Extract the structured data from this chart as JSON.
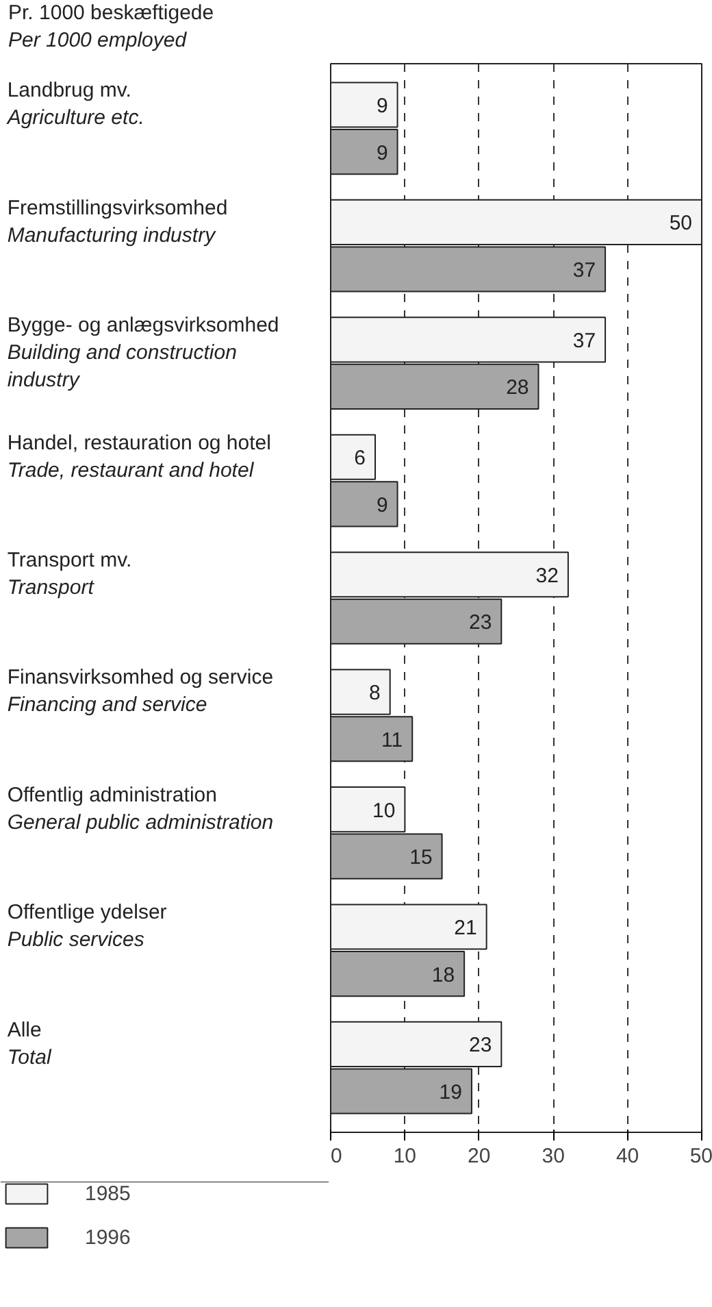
{
  "chart_data": {
    "type": "bar",
    "orientation": "horizontal",
    "title": "Pr. 1000 beskæftigede",
    "subtitle": "Per 1000 employed",
    "categories": [
      "Landbrug mv.\nAgriculture etc.",
      "Fremstillingsvirksomhed\nManufacturing industry",
      "Bygge- og anlægsvirksomhed\nBuilding and construction\nindustry",
      "Handel, restauration og hotel\nTrade, restaurant and hotel",
      "Transport mv.\nTransport",
      "Finansvirksomhed og service\nFinancing and service",
      "Offentlig administration\nGeneral public administration",
      "Offentlige ydelser\nPublic services",
      "Alle\nTotal"
    ],
    "series": [
      {
        "name": "1985",
        "color": "#f4f4f4",
        "values": [
          9,
          50,
          37,
          6,
          32,
          8,
          10,
          21,
          23
        ]
      },
      {
        "name": "1996",
        "color": "#a6a6a6",
        "values": [
          9,
          37,
          28,
          9,
          23,
          11,
          15,
          18,
          19
        ]
      }
    ],
    "xlim": [
      0,
      50
    ],
    "xticks": [
      0,
      10,
      20,
      30,
      40,
      50
    ],
    "grid": "x",
    "data_labels": true,
    "legend": "bottom"
  }
}
